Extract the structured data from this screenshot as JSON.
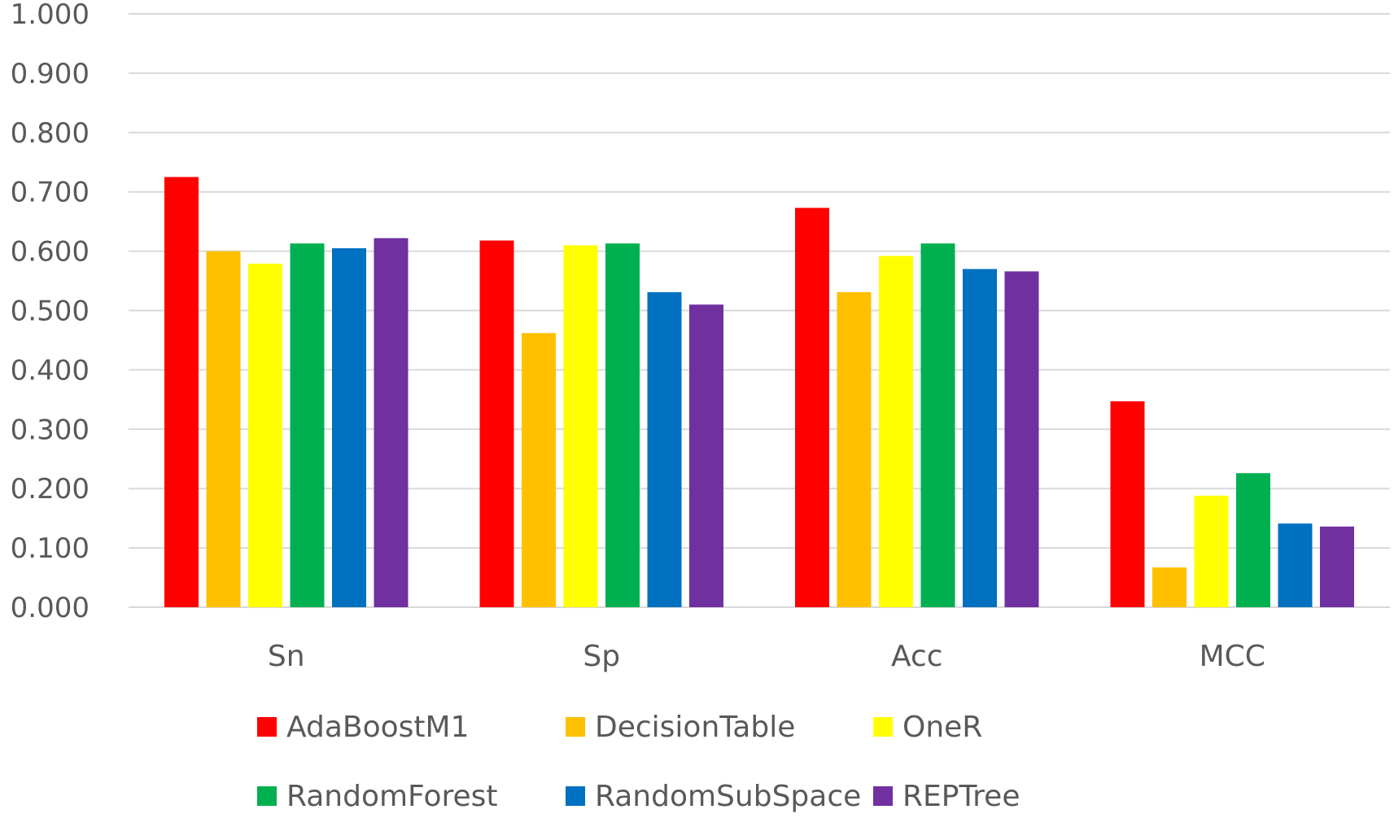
{
  "chart_data": {
    "type": "bar",
    "title": "",
    "xlabel": "",
    "ylabel": "",
    "ylim": [
      0,
      1
    ],
    "y_ticks": [
      "0.000",
      "0.100",
      "0.200",
      "0.300",
      "0.400",
      "0.500",
      "0.600",
      "0.700",
      "0.800",
      "0.900",
      "1.000"
    ],
    "categories": [
      "Sn",
      "Sp",
      "Acc",
      "MCC"
    ],
    "series": [
      {
        "name": "AdaBoostM1",
        "color": "#ff0000",
        "values": [
          0.725,
          0.618,
          0.673,
          0.347
        ]
      },
      {
        "name": "DecisionTable",
        "color": "#ffc000",
        "values": [
          0.6,
          0.462,
          0.531,
          0.067
        ]
      },
      {
        "name": "OneR",
        "color": "#ffff00",
        "values": [
          0.579,
          0.61,
          0.592,
          0.188
        ]
      },
      {
        "name": "RandomForest",
        "color": "#00b050",
        "values": [
          0.613,
          0.613,
          0.613,
          0.226
        ]
      },
      {
        "name": "RandomSubSpace",
        "color": "#0070c0",
        "values": [
          0.605,
          0.531,
          0.57,
          0.141
        ]
      },
      {
        "name": "REPTree",
        "color": "#7030a0",
        "values": [
          0.622,
          0.51,
          0.566,
          0.136
        ]
      }
    ],
    "grid": true,
    "legend_position": "bottom"
  }
}
